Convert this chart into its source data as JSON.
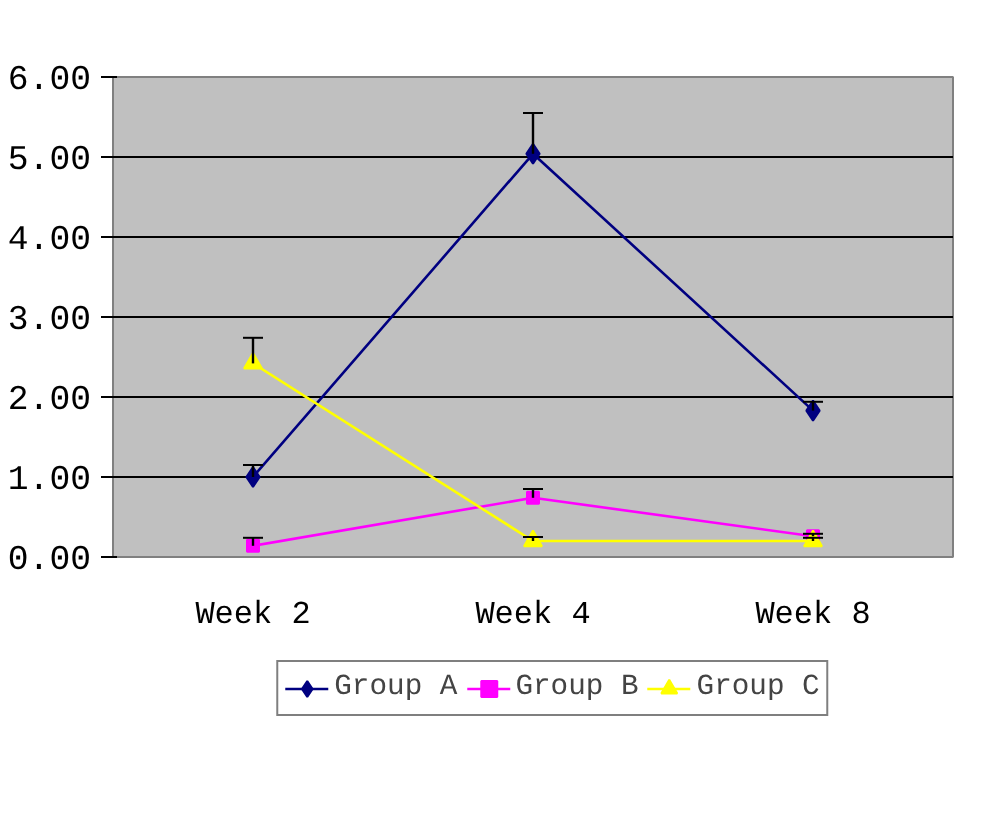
{
  "chart_data": {
    "type": "line",
    "categories": [
      "Week 2",
      "Week 4",
      "Week 8"
    ],
    "ylim": [
      0,
      6
    ],
    "yticks": [
      {
        "value": 0,
        "label": "0.00"
      },
      {
        "value": 1,
        "label": "1.00"
      },
      {
        "value": 2,
        "label": "2.00"
      },
      {
        "value": 3,
        "label": "3.00"
      },
      {
        "value": 4,
        "label": "4.00"
      },
      {
        "value": 5,
        "label": "5.00"
      },
      {
        "value": 6,
        "label": "6.00"
      }
    ],
    "grid": "y",
    "legend": "bottom",
    "line_style": "solid",
    "series": [
      {
        "name": "Group A",
        "color": "#000080",
        "marker": "diamond",
        "values": [
          1.0,
          5.04,
          1.83
        ],
        "errors": [
          [
            1.0,
            1.15
          ],
          [
            5.04,
            5.55
          ],
          [
            1.83,
            1.94
          ]
        ]
      },
      {
        "name": "Group B",
        "color": "#ff00ff",
        "marker": "square",
        "values": [
          0.14,
          0.74,
          0.26
        ],
        "errors": [
          [
            0.14,
            0.24
          ],
          [
            0.74,
            0.85
          ],
          [
            0.26,
            0.29
          ]
        ]
      },
      {
        "name": "Group C",
        "color": "#ffff00",
        "marker": "triangle",
        "values": [
          2.42,
          0.2,
          0.2
        ],
        "errors": [
          [
            2.42,
            2.74
          ],
          [
            0.2,
            0.25
          ],
          [
            0.2,
            0.24
          ]
        ]
      }
    ]
  }
}
